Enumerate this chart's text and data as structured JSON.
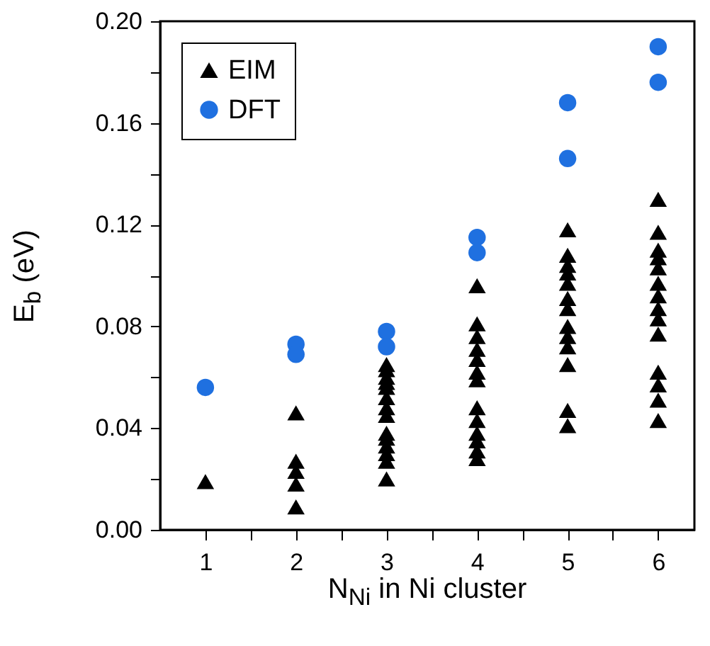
{
  "chart_data": {
    "type": "scatter",
    "xlabel": "N$_{Ni}$ in Ni cluster",
    "ylabel": "E$_{b}$ (eV)",
    "xlim": [
      0.5,
      6.4
    ],
    "xticks": [
      1,
      {
        "value": 1.5,
        "label": null
      },
      2,
      {
        "value": 2.5,
        "label": null
      },
      3,
      {
        "value": 3.5,
        "label": null
      },
      4,
      {
        "value": 4.5,
        "label": null
      },
      5,
      {
        "value": 5.5,
        "label": null
      },
      6
    ],
    "ylim": [
      0,
      0.2
    ],
    "yticks": [
      {
        "value": 0,
        "label": "0.00"
      },
      {
        "value": 0.02,
        "label": null
      },
      {
        "value": 0.04,
        "label": "0.04"
      },
      {
        "value": 0.06,
        "label": null
      },
      {
        "value": 0.08,
        "label": "0.08"
      },
      {
        "value": 0.1,
        "label": null
      },
      {
        "value": 0.12,
        "label": "0.12"
      },
      {
        "value": 0.14,
        "label": null
      },
      {
        "value": 0.16,
        "label": "0.16"
      },
      {
        "value": 0.18,
        "label": null
      },
      {
        "value": 0.2,
        "label": "0.20"
      }
    ],
    "legend": "top left",
    "grid": false,
    "series": [
      {
        "name": "EIM",
        "color": "#000000",
        "marker": "triangle",
        "x": [
          1,
          2,
          2,
          2,
          2,
          2,
          3,
          3,
          3,
          3,
          3,
          3,
          3,
          3,
          3,
          3,
          3,
          3,
          3,
          3,
          4,
          4,
          4,
          4,
          4,
          4,
          4,
          4,
          4,
          4,
          4,
          4,
          4,
          5,
          5,
          5,
          5,
          5,
          5,
          5,
          5,
          5,
          5,
          5,
          5,
          5,
          6,
          6,
          6,
          6,
          6,
          6,
          6,
          6,
          6,
          6,
          6,
          6,
          6,
          6
        ],
        "values": [
          0.019,
          0.046,
          0.027,
          0.023,
          0.018,
          0.009,
          0.065,
          0.063,
          0.06,
          0.058,
          0.056,
          0.052,
          0.048,
          0.045,
          0.038,
          0.036,
          0.033,
          0.03,
          0.027,
          0.02,
          0.096,
          0.081,
          0.076,
          0.071,
          0.067,
          0.062,
          0.059,
          0.048,
          0.043,
          0.038,
          0.035,
          0.031,
          0.028,
          0.118,
          0.108,
          0.104,
          0.101,
          0.097,
          0.091,
          0.087,
          0.08,
          0.076,
          0.072,
          0.065,
          0.047,
          0.041,
          0.13,
          0.117,
          0.11,
          0.107,
          0.103,
          0.097,
          0.092,
          0.087,
          0.083,
          0.077,
          0.062,
          0.057,
          0.051,
          0.043
        ]
      },
      {
        "name": "DFT",
        "color": "#1f70e0",
        "marker": "circle",
        "x": [
          1,
          2,
          2,
          3,
          3,
          4,
          4,
          5,
          5,
          6,
          6
        ],
        "values": [
          0.056,
          0.073,
          0.069,
          0.078,
          0.072,
          0.115,
          0.109,
          0.168,
          0.146,
          0.19,
          0.176
        ]
      }
    ]
  }
}
